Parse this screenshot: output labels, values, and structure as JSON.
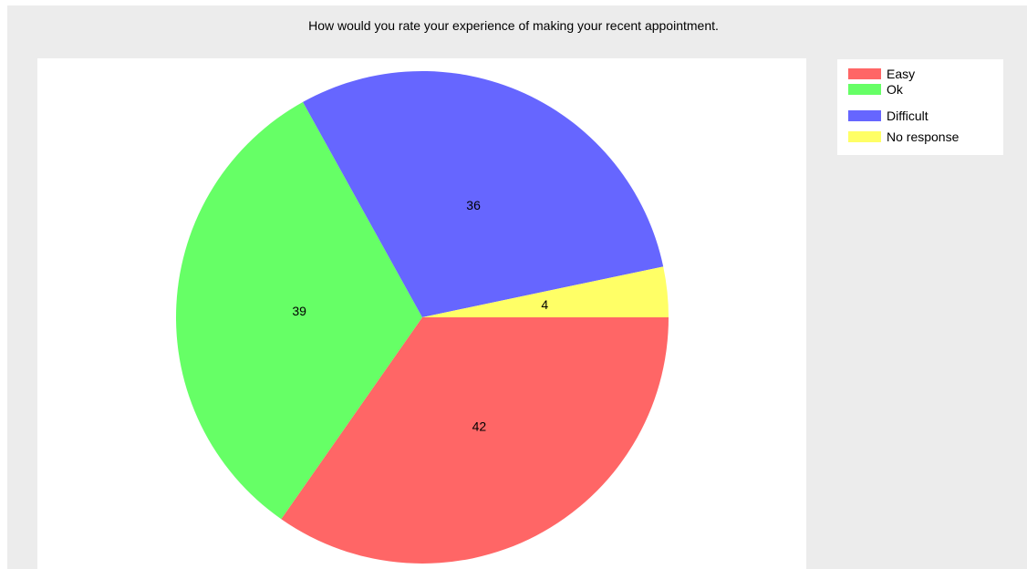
{
  "chart_data": {
    "type": "pie",
    "title": "How would you rate your experience of making your recent appointment.",
    "slices": [
      {
        "name": "Easy",
        "value": 42,
        "color": "#ff6666"
      },
      {
        "name": "Ok",
        "value": 39,
        "color": "#66ff66"
      },
      {
        "name": "Difficult",
        "value": 36,
        "color": "#6666ff"
      },
      {
        "name": "No response",
        "value": 4,
        "color": "#ffff66"
      }
    ],
    "legend_position": "top-right",
    "background_color": "#ececec"
  }
}
